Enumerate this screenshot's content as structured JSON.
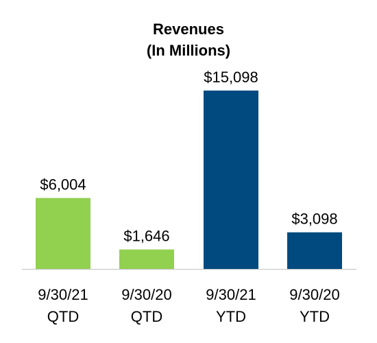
{
  "chart_data": {
    "type": "bar",
    "title": "Revenues",
    "subtitle": "(In Millions)",
    "categories": [
      [
        "9/30/21",
        "QTD"
      ],
      [
        "9/30/20",
        "QTD"
      ],
      [
        "9/30/21",
        "YTD"
      ],
      [
        "9/30/20",
        "YTD"
      ]
    ],
    "values": [
      6004,
      1646,
      15098,
      3098
    ],
    "value_labels": [
      "$6,004",
      "$1,646",
      "$15,098",
      "$3,098"
    ],
    "bar_colors": [
      "#92d050",
      "#92d050",
      "#004a80",
      "#004a80"
    ],
    "xlabel": "",
    "ylabel": "",
    "ylim": [
      0,
      16000
    ],
    "grid": false,
    "legend": "none"
  },
  "colors": {
    "qtd": "#92d050",
    "ytd": "#004a80",
    "axis": "#c0c0c0"
  }
}
